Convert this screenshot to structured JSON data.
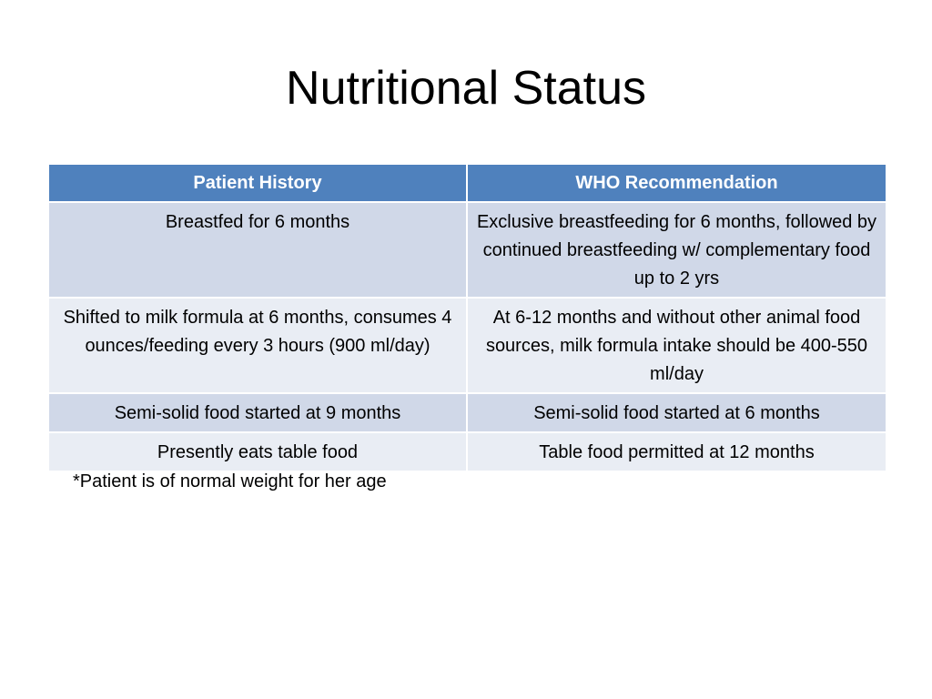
{
  "slide": {
    "title": "Nutritional Status",
    "table": {
      "headers": [
        "Patient History",
        "WHO Recommendation"
      ],
      "rows": [
        [
          "Breastfed for 6 months",
          "Exclusive breastfeeding for 6 months, followed by continued breastfeeding w/ complementary food up to 2 yrs"
        ],
        [
          "Shifted to milk formula at 6 months, consumes 4 ounces/feeding every 3 hours (900 ml/day)",
          "At 6-12 months and without other animal food sources, milk formula intake should be 400-550 ml/day"
        ],
        [
          "Semi-solid food started at 9 months",
          "Semi-solid food started at 6 months"
        ],
        [
          "Presently eats table food",
          "Table food permitted at 12 months"
        ]
      ]
    },
    "footnote": "*Patient is of normal weight for her age",
    "colors": {
      "header_bg": "#4f81bd",
      "row_odd_bg": "#d0d8e8",
      "row_even_bg": "#e9edf4",
      "header_text": "#ffffff"
    }
  }
}
